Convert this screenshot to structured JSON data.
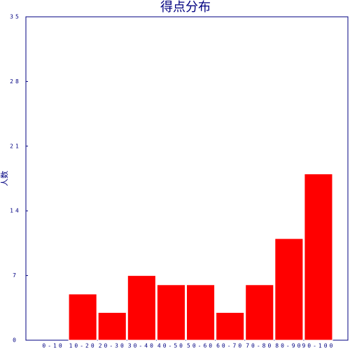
{
  "chart_data": {
    "type": "bar",
    "title": "得点分布",
    "ylabel": "人数",
    "categories": [
      "0-10",
      "10-20",
      "20-30",
      "30-40",
      "40-50",
      "50-60",
      "60-70",
      "70-80",
      "80-90",
      "90-100"
    ],
    "values": [
      0,
      5,
      3,
      7,
      6,
      6,
      3,
      6,
      11,
      18
    ],
    "color": "#ff0000",
    "ylim": [
      0,
      35
    ],
    "yticks": [
      0,
      7,
      14,
      21,
      28,
      35
    ]
  }
}
